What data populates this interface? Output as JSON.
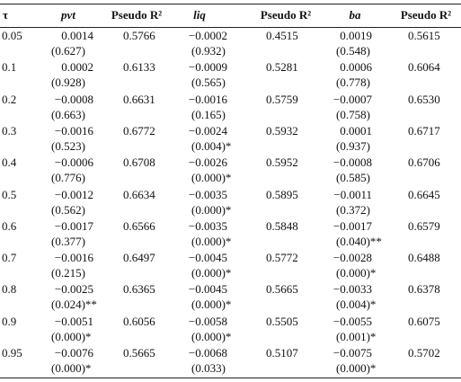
{
  "table": {
    "header": [
      "τ",
      "pvt",
      "Pseudo R²",
      "liq",
      "Pseudo R²",
      "ba",
      "Pseudo R²"
    ],
    "rows": [
      {
        "tau": "0.05",
        "groups": [
          {
            "coef": "0.0014",
            "p": "(0.627)",
            "r2": "0.5766"
          },
          {
            "coef": "−0.0002",
            "p": "(0.932)",
            "r2": "0.4515"
          },
          {
            "coef": "0.0019",
            "p": "(0.548)",
            "r2": "0.5615"
          }
        ]
      },
      {
        "tau": "0.1",
        "groups": [
          {
            "coef": "0.0002",
            "p": "(0.928)",
            "r2": "0.6133"
          },
          {
            "coef": "−0.0009",
            "p": "(0.565)",
            "r2": "0.5281"
          },
          {
            "coef": "0.0006",
            "p": "(0.778)",
            "r2": "0.6064"
          }
        ]
      },
      {
        "tau": "0.2",
        "groups": [
          {
            "coef": "−0.0008",
            "p": "(0.663)",
            "r2": "0.6631"
          },
          {
            "coef": "−0.0016",
            "p": "(0.165)",
            "r2": "0.5759"
          },
          {
            "coef": "−0.0007",
            "p": "(0.758)",
            "r2": "0.6530"
          }
        ]
      },
      {
        "tau": "0.3",
        "groups": [
          {
            "coef": "−0.0016",
            "p": "(0.523)",
            "r2": "0.6772"
          },
          {
            "coef": "−0.0024",
            "p": "(0.004)*",
            "r2": "0.5932"
          },
          {
            "coef": "0.0001",
            "p": "(0.937)",
            "r2": "0.6717"
          }
        ]
      },
      {
        "tau": "0.4",
        "groups": [
          {
            "coef": "−0.0006",
            "p": "(0.776)",
            "r2": "0.6708"
          },
          {
            "coef": "−0.0026",
            "p": "(0.000)*",
            "r2": "0.5952"
          },
          {
            "coef": "−0.0008",
            "p": "(0.585)",
            "r2": "0.6706"
          }
        ]
      },
      {
        "tau": "0.5",
        "groups": [
          {
            "coef": "−0.0012",
            "p": "(0.562)",
            "r2": "0.6634"
          },
          {
            "coef": "−0.0035",
            "p": "(0.000)*",
            "r2": "0.5895"
          },
          {
            "coef": "−0.0011",
            "p": "(0.372)",
            "r2": "0.6645"
          }
        ]
      },
      {
        "tau": "0.6",
        "groups": [
          {
            "coef": "−0.0017",
            "p": "(0.377)",
            "r2": "0.6566"
          },
          {
            "coef": "−0.0035",
            "p": "(0.000)*",
            "r2": "0.5848"
          },
          {
            "coef": "−0.0017",
            "p": "(0.040)**",
            "r2": "0.6579"
          }
        ]
      },
      {
        "tau": "0.7",
        "groups": [
          {
            "coef": "−0.0016",
            "p": "(0.215)",
            "r2": "0.6497"
          },
          {
            "coef": "−0.0045",
            "p": "(0.000)*",
            "r2": "0.5772"
          },
          {
            "coef": "−0.0028",
            "p": "(0.000)*",
            "r2": "0.6488"
          }
        ]
      },
      {
        "tau": "0.8",
        "groups": [
          {
            "coef": "−0.0025",
            "p": "(0.024)**",
            "r2": "0.6365"
          },
          {
            "coef": "−0.0045",
            "p": "(0.000)*",
            "r2": "0.5665"
          },
          {
            "coef": "−0.0033",
            "p": "(0.004)*",
            "r2": "0.6378"
          }
        ]
      },
      {
        "tau": "0.9",
        "groups": [
          {
            "coef": "−0.0051",
            "p": "(0.000)*",
            "r2": "0.6056"
          },
          {
            "coef": "−0.0058",
            "p": "(0.000)*",
            "r2": "0.5505"
          },
          {
            "coef": "−0.0055",
            "p": "(0.001)*",
            "r2": "0.6075"
          }
        ]
      },
      {
        "tau": "0.95",
        "groups": [
          {
            "coef": "−0.0076",
            "p": "(0.000)*",
            "r2": "0.5665"
          },
          {
            "coef": "−0.0068",
            "p": "(0.033)",
            "r2": "0.5107"
          },
          {
            "coef": "−0.0075",
            "p": "(0.000)*",
            "r2": "0.5702"
          }
        ]
      }
    ]
  }
}
